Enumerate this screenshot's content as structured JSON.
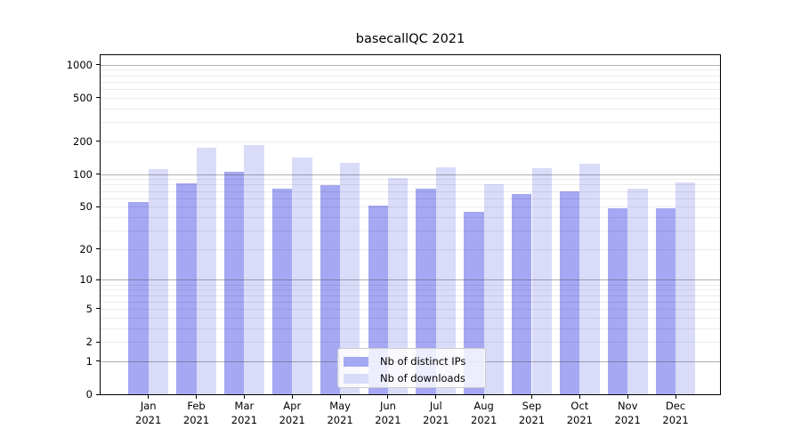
{
  "chart_data": {
    "type": "bar",
    "title": "basecallQC 2021",
    "categories": [
      "Jan",
      "Feb",
      "Mar",
      "Apr",
      "May",
      "Jun",
      "Jul",
      "Aug",
      "Sep",
      "Oct",
      "Nov",
      "Dec"
    ],
    "x_tick_year": "2021",
    "series": [
      {
        "name": "Nb of distinct IPs",
        "color": "#a5a8f2",
        "values": [
          55,
          83,
          105,
          73,
          79,
          51,
          73,
          45,
          66,
          70,
          48,
          48
        ]
      },
      {
        "name": "Nb of downloads",
        "color": "#d9dbf9",
        "values": [
          112,
          176,
          185,
          141,
          128,
          93,
          116,
          80,
          113,
          124,
          74,
          84
        ]
      }
    ],
    "yscale": "log1p",
    "ylim": [
      0,
      1220
    ],
    "y_ticks": [
      0,
      1,
      2,
      5,
      10,
      20,
      50,
      100,
      200,
      500,
      1000
    ],
    "y_major_grid": [
      1,
      10,
      100,
      1000
    ],
    "y_minor_grid": [
      2,
      3,
      4,
      5,
      6,
      7,
      8,
      9,
      20,
      30,
      40,
      50,
      60,
      70,
      80,
      90,
      200,
      300,
      400,
      500,
      600,
      700,
      800,
      900
    ],
    "grid": true,
    "legend_position": "lower-center-inside",
    "xlabel": "",
    "ylabel": "",
    "colors": {
      "axis": "#000000",
      "major_grid": "#9e9e9e",
      "minor_grid": "#ececec",
      "background": "#ffffff",
      "legend_background": "rgba(255,255,255,0.8)",
      "legend_border": "#cccccc",
      "text": "#000000"
    }
  }
}
